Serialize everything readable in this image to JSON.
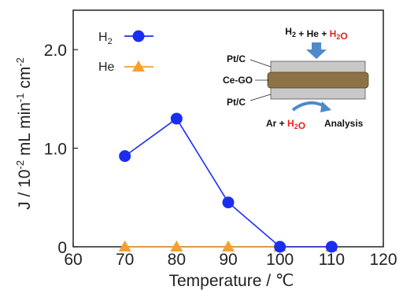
{
  "chart_data": {
    "type": "line",
    "xlabel": "Temperature / ℃",
    "ylabel_parts": {
      "j": "J / 10",
      "exp": "-2",
      "unit": " mL min",
      "exp2": "-1",
      "cm": " cm",
      "exp3": "-2"
    },
    "xlim": [
      60,
      120
    ],
    "ylim": [
      0,
      2.4
    ],
    "x_ticks": [
      "60",
      "70",
      "80",
      "90",
      "100",
      "110",
      "120"
    ],
    "y_ticks": [
      "0",
      "1.0",
      "2.0"
    ],
    "y_tick_values": [
      0,
      1.0,
      2.0
    ],
    "x_tick_values": [
      60,
      70,
      80,
      90,
      100,
      110,
      120
    ],
    "grid": false,
    "legend_placement": "top-left",
    "series": [
      {
        "name": "H2",
        "legend_main": "H",
        "legend_sub": "2",
        "color": "#1a2ef0",
        "marker": "circle",
        "x": [
          70,
          80,
          90,
          100,
          110
        ],
        "y": [
          0.92,
          1.3,
          0.45,
          0.0,
          0.0
        ]
      },
      {
        "name": "He",
        "legend_main": "He",
        "color": "#f2a030",
        "marker": "triangle",
        "x": [
          70,
          80,
          90,
          100,
          110
        ],
        "y": [
          0.0,
          0.0,
          0.0,
          0.0,
          0.0
        ]
      }
    ],
    "inset": {
      "feed_parts": [
        {
          "text": "H",
          "color": "#111111"
        },
        {
          "text": "2",
          "sub": true,
          "color": "#111111"
        },
        {
          "text": " + He + ",
          "color": "#111111"
        },
        {
          "text": "H",
          "color": "#e8231f"
        },
        {
          "text": "2",
          "sub": true,
          "color": "#e8231f"
        },
        {
          "text": "O",
          "color": "#e8231f"
        }
      ],
      "layer_top": "Pt/C",
      "layer_mid": "Ce-GO",
      "layer_bottom": "Pt/C",
      "sweep_parts": [
        {
          "text": "Ar + ",
          "color": "#111111"
        },
        {
          "text": "H",
          "color": "#e8231f"
        },
        {
          "text": "2",
          "sub": true,
          "color": "#e8231f"
        },
        {
          "text": "O",
          "color": "#e8231f"
        }
      ],
      "analysis": "Analysis"
    }
  }
}
